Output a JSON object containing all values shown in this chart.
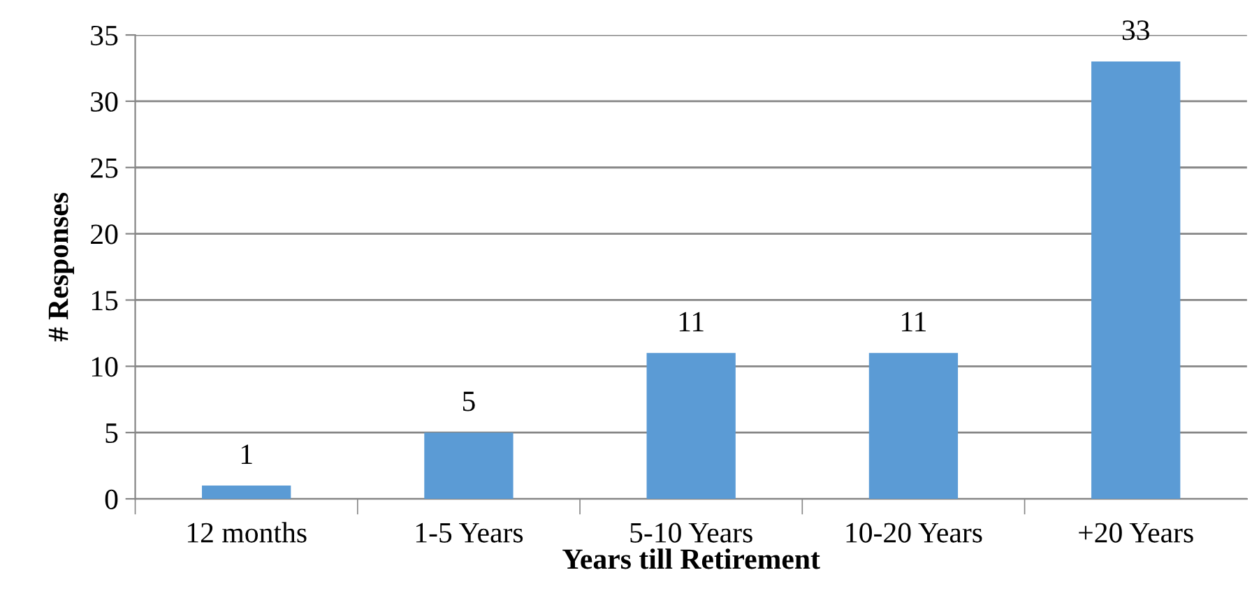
{
  "chart_data": {
    "type": "bar",
    "xlabel": "Years till Retirement",
    "ylabel": "# Responses",
    "categories": [
      "12 months",
      "1-5 Years",
      "5-10 Years",
      "10-20 Years",
      "+20 Years"
    ],
    "values": [
      1,
      5,
      11,
      11,
      33
    ],
    "color": "#5b9bd5",
    "ylim": [
      0,
      35
    ],
    "yticks": [
      0,
      5,
      10,
      15,
      20,
      25,
      30,
      35
    ],
    "grid": "y",
    "data_labels": true
  }
}
